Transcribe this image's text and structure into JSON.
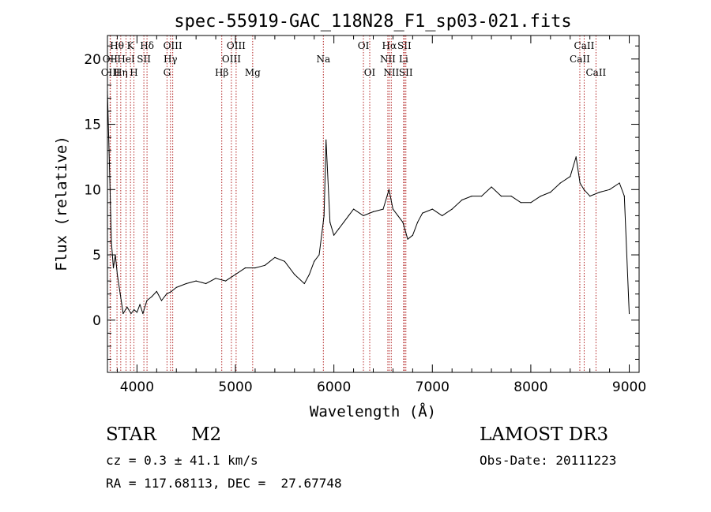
{
  "chart_data": {
    "type": "line",
    "title": "spec-55919-GAC_118N28_F1_sp03-021.fits",
    "xlabel": "Wavelength (Å)",
    "ylabel": "Flux (relative)",
    "xlim": [
      3700,
      9100
    ],
    "ylim": [
      -4,
      21.8
    ],
    "x_ticks": [
      4000,
      5000,
      6000,
      7000,
      8000,
      9000
    ],
    "x_tick_labels": [
      "4000",
      "5000",
      "6000",
      "7000",
      "8000",
      "9000"
    ],
    "y_ticks": [
      0,
      5,
      10,
      15,
      20
    ],
    "y_tick_labels": [
      "0",
      "5",
      "10",
      "15",
      "20"
    ],
    "grid": false,
    "series": [
      {
        "name": "spectrum",
        "x": [
          3700,
          3720,
          3740,
          3760,
          3780,
          3800,
          3830,
          3860,
          3900,
          3940,
          3970,
          4000,
          4030,
          4060,
          4100,
          4150,
          4200,
          4250,
          4300,
          4350,
          4400,
          4500,
          4600,
          4700,
          4800,
          4900,
          5000,
          5100,
          5200,
          5300,
          5400,
          5500,
          5600,
          5700,
          5750,
          5800,
          5850,
          5900,
          5920,
          5960,
          6000,
          6050,
          6100,
          6150,
          6200,
          6300,
          6400,
          6500,
          6560,
          6600,
          6650,
          6700,
          6750,
          6800,
          6850,
          6900,
          7000,
          7100,
          7200,
          7300,
          7400,
          7500,
          7600,
          7700,
          7800,
          7900,
          8000,
          8100,
          8200,
          8300,
          8400,
          8460,
          8500,
          8540,
          8600,
          8700,
          8800,
          8900,
          8950,
          9000
        ],
        "y": [
          17.5,
          12,
          6,
          4,
          5,
          3.5,
          2,
          0.5,
          1,
          0.5,
          0.8,
          0.6,
          1.2,
          0.5,
          1.5,
          1.8,
          2.2,
          1.5,
          2,
          2.2,
          2.5,
          2.8,
          3,
          2.8,
          3.2,
          3.0,
          3.5,
          4.0,
          4.0,
          4.2,
          4.8,
          4.5,
          3.5,
          2.8,
          3.5,
          4.5,
          5,
          8,
          13.8,
          7.5,
          6.5,
          7,
          7.5,
          8,
          8.5,
          8,
          8.3,
          8.5,
          10,
          8.5,
          8,
          7.5,
          6.2,
          6.5,
          7.5,
          8.2,
          8.5,
          8,
          8.5,
          9.2,
          9.5,
          9.5,
          10.2,
          9.5,
          9.5,
          9.0,
          9.0,
          9.5,
          9.8,
          10.5,
          11.0,
          12.5,
          10.5,
          10.0,
          9.5,
          9.8,
          10.0,
          10.5,
          9.5,
          0.5
        ]
      }
    ],
    "spectral_lines": [
      {
        "label": "Hθ",
        "x": 3797,
        "row": 1
      },
      {
        "label": "OII",
        "x": 3727,
        "row": 2
      },
      {
        "label": "OIII",
        "x": 3730,
        "row": 3
      },
      {
        "label": "HeI",
        "x": 3889,
        "row": 2
      },
      {
        "label": "Hη",
        "x": 3835,
        "row": 3
      },
      {
        "label": "K",
        "x": 3934,
        "row": 1
      },
      {
        "label": "SII",
        "x": 4070,
        "row": 2
      },
      {
        "label": "H",
        "x": 3969,
        "row": 3
      },
      {
        "label": "Hδ",
        "x": 4102,
        "row": 1
      },
      {
        "label": "OIII",
        "x": 4363,
        "row": 1
      },
      {
        "label": "Hγ",
        "x": 4340,
        "row": 2
      },
      {
        "label": "G",
        "x": 4305,
        "row": 3
      },
      {
        "label": "OIII",
        "x": 5007,
        "row": 1
      },
      {
        "label": "OIII",
        "x": 4959,
        "row": 2
      },
      {
        "label": "Hβ",
        "x": 4861,
        "row": 3
      },
      {
        "label": "Mg",
        "x": 5175,
        "row": 3
      },
      {
        "label": "Na",
        "x": 5893,
        "row": 2
      },
      {
        "label": "OI",
        "x": 6300,
        "row": 1
      },
      {
        "label": "OI",
        "x": 6364,
        "row": 3
      },
      {
        "label": "Hα",
        "x": 6563,
        "row": 1
      },
      {
        "label": "SII",
        "x": 6716,
        "row": 1
      },
      {
        "label": "NII",
        "x": 6548,
        "row": 2
      },
      {
        "label": "Li",
        "x": 6708,
        "row": 2
      },
      {
        "label": "NII",
        "x": 6583,
        "row": 3
      },
      {
        "label": "SII",
        "x": 6731,
        "row": 3
      },
      {
        "label": "CaII",
        "x": 8542,
        "row": 1
      },
      {
        "label": "CaII",
        "x": 8498,
        "row": 2
      },
      {
        "label": "CaII",
        "x": 8662,
        "row": 3
      }
    ]
  },
  "info": {
    "object_type": "STAR",
    "subclass": "M2",
    "survey": "LAMOST DR3",
    "redshift": "cz = 0.3 ± 41.1 km/s",
    "obs_date": "Obs-Date: 20111223",
    "coordinates": "RA = 117.68113, DEC =  27.67748"
  }
}
